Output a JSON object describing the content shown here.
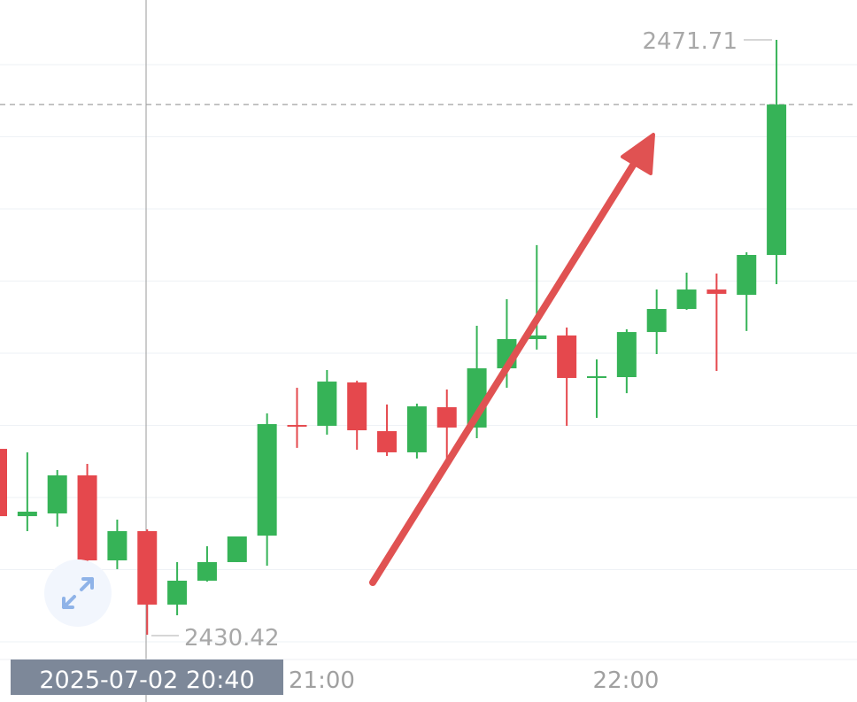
{
  "chart_data": {
    "type": "candlestick",
    "title": "",
    "colors": {
      "up": "#36b357",
      "down": "#e5484d",
      "annotation_arrow": "#e05252",
      "crosshair_label_bg": "#7d8899"
    },
    "ylim": [
      2430.42,
      2471.71
    ],
    "grid": true,
    "x_ticks": [
      "21:00",
      "22:00"
    ],
    "crosshair_time": "2025-07-02 20:40",
    "max_label": "2471.71",
    "min_label": "2430.42",
    "current_price": 2467.22,
    "candles": [
      {
        "o": 2443.32,
        "h": 2443.32,
        "l": 2438.65,
        "c": 2438.65
      },
      {
        "o": 2438.65,
        "h": 2443.08,
        "l": 2437.61,
        "c": 2438.96
      },
      {
        "o": 2438.84,
        "h": 2441.85,
        "l": 2437.92,
        "c": 2441.48
      },
      {
        "o": 2441.48,
        "h": 2442.28,
        "l": 2432.94,
        "c": 2435.58
      },
      {
        "o": 2435.58,
        "h": 2438.41,
        "l": 2434.97,
        "c": 2437.61
      },
      {
        "o": 2437.61,
        "h": 2437.73,
        "l": 2430.42,
        "c": 2432.51
      },
      {
        "o": 2432.51,
        "h": 2435.46,
        "l": 2431.77,
        "c": 2434.17
      },
      {
        "o": 2434.17,
        "h": 2436.56,
        "l": 2434.11,
        "c": 2435.46
      },
      {
        "o": 2435.46,
        "h": 2437.24,
        "l": 2435.46,
        "c": 2437.24
      },
      {
        "o": 2437.3,
        "h": 2445.78,
        "l": 2435.21,
        "c": 2445.04
      },
      {
        "o": 2444.98,
        "h": 2447.56,
        "l": 2443.39,
        "c": 2444.92
      },
      {
        "o": 2444.92,
        "h": 2448.79,
        "l": 2444.31,
        "c": 2447.99
      },
      {
        "o": 2447.93,
        "h": 2448.05,
        "l": 2443.26,
        "c": 2444.61
      },
      {
        "o": 2444.55,
        "h": 2446.4,
        "l": 2442.83,
        "c": 2443.08
      },
      {
        "o": 2443.08,
        "h": 2446.46,
        "l": 2442.65,
        "c": 2446.27
      },
      {
        "o": 2446.21,
        "h": 2447.44,
        "l": 2442.52,
        "c": 2444.8
      },
      {
        "o": 2444.8,
        "h": 2451.86,
        "l": 2444.06,
        "c": 2448.91
      },
      {
        "o": 2448.91,
        "h": 2453.71,
        "l": 2447.56,
        "c": 2450.94
      },
      {
        "o": 2450.94,
        "h": 2457.46,
        "l": 2450.21,
        "c": 2451.19
      },
      {
        "o": 2451.19,
        "h": 2451.74,
        "l": 2444.92,
        "c": 2448.24
      },
      {
        "o": 2448.3,
        "h": 2449.53,
        "l": 2445.47,
        "c": 2448.36
      },
      {
        "o": 2448.3,
        "h": 2451.62,
        "l": 2447.19,
        "c": 2451.43
      },
      {
        "o": 2451.43,
        "h": 2454.38,
        "l": 2449.9,
        "c": 2453.03
      },
      {
        "o": 2453.03,
        "h": 2455.55,
        "l": 2452.97,
        "c": 2454.38
      },
      {
        "o": 2454.38,
        "h": 2455.49,
        "l": 2448.73,
        "c": 2454.08
      },
      {
        "o": 2454.01,
        "h": 2456.96,
        "l": 2451.5,
        "c": 2456.78
      },
      {
        "o": 2456.78,
        "h": 2471.71,
        "l": 2454.75,
        "c": 2467.22
      }
    ]
  },
  "icons": {
    "expand": "expand-arrows-icon"
  }
}
